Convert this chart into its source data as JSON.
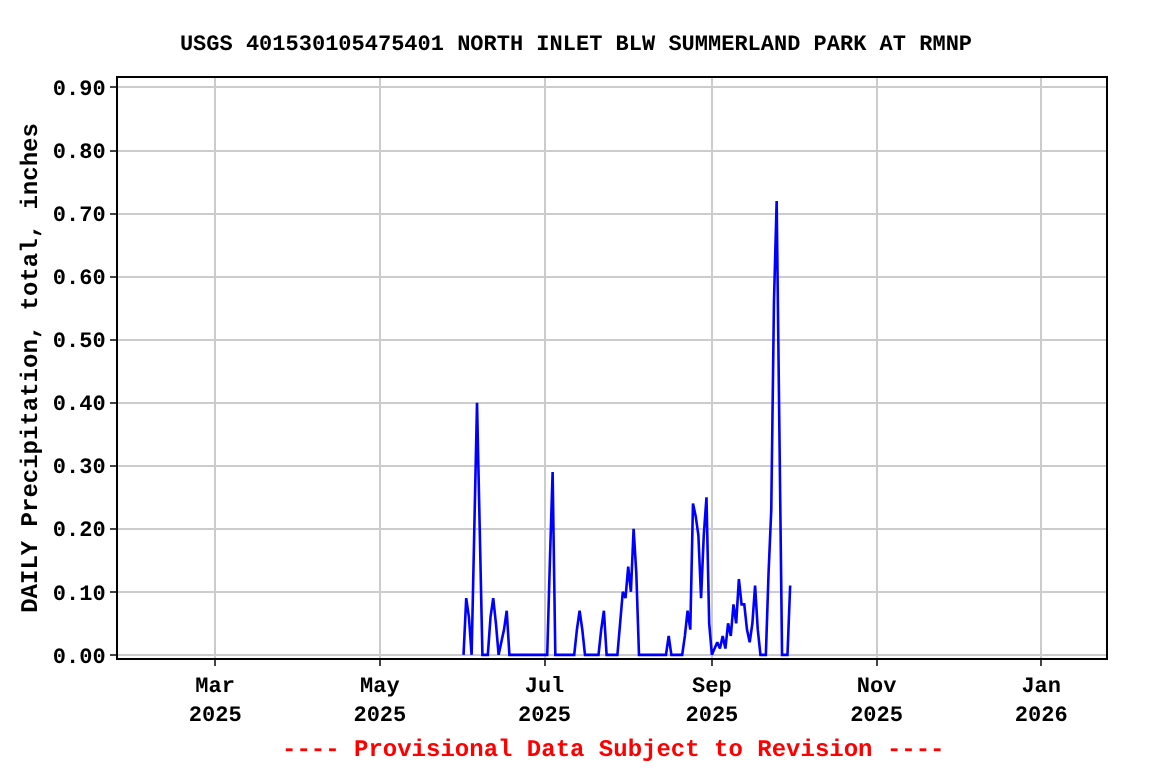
{
  "chart_data": {
    "type": "line",
    "title": "USGS 401530105475401 NORTH INLET BLW SUMMERLAND PARK AT RMNP",
    "ylabel": "DAILY Precipitation, total, inches",
    "annotations": [
      "---- Provisional Data Subject to Revision ----"
    ],
    "xlim": [
      "2025-01-24",
      "2026-01-25"
    ],
    "xticks": [
      {
        "value": "2025-03-01",
        "label": "Mar\n2025"
      },
      {
        "value": "2025-05-01",
        "label": "May\n2025"
      },
      {
        "value": "2025-07-01",
        "label": "Jul\n2025"
      },
      {
        "value": "2025-09-01",
        "label": "Sep\n2025"
      },
      {
        "value": "2025-11-01",
        "label": "Nov\n2025"
      },
      {
        "value": "2026-01-01",
        "label": "Jan\n2026"
      }
    ],
    "ylim": [
      -0.005,
      0.915
    ],
    "yticks": [
      {
        "value": 0,
        "label": "0.00"
      },
      {
        "value": 0.1,
        "label": "0.10"
      },
      {
        "value": 0.2,
        "label": "0.20"
      },
      {
        "value": 0.3,
        "label": "0.30"
      },
      {
        "value": 0.4,
        "label": "0.40"
      },
      {
        "value": 0.5,
        "label": "0.50"
      },
      {
        "value": 0.6,
        "label": "0.60"
      },
      {
        "value": 0.7,
        "label": "0.70"
      },
      {
        "value": 0.8,
        "label": "0.80"
      },
      {
        "value": 0.9,
        "label": "0.90"
      }
    ],
    "grid": true,
    "marker": "none",
    "line_style": "solid",
    "x": [
      "2025-06-01",
      "2025-06-02",
      "2025-06-03",
      "2025-06-04",
      "2025-06-05",
      "2025-06-06",
      "2025-06-07",
      "2025-06-08",
      "2025-06-10",
      "2025-06-11",
      "2025-06-12",
      "2025-06-13",
      "2025-06-14",
      "2025-06-16",
      "2025-06-17",
      "2025-06-18",
      "2025-07-02",
      "2025-07-03",
      "2025-07-04",
      "2025-07-05",
      "2025-07-12",
      "2025-07-13",
      "2025-07-14",
      "2025-07-15",
      "2025-07-16",
      "2025-07-21",
      "2025-07-22",
      "2025-07-23",
      "2025-07-24",
      "2025-07-28",
      "2025-07-29",
      "2025-07-30",
      "2025-07-31",
      "2025-08-01",
      "2025-08-02",
      "2025-08-03",
      "2025-08-04",
      "2025-08-05",
      "2025-08-15",
      "2025-08-16",
      "2025-08-17",
      "2025-08-21",
      "2025-08-22",
      "2025-08-23",
      "2025-08-24",
      "2025-08-25",
      "2025-08-26",
      "2025-08-27",
      "2025-08-28",
      "2025-08-29",
      "2025-08-30",
      "2025-08-31",
      "2025-09-01",
      "2025-09-03",
      "2025-09-04",
      "2025-09-05",
      "2025-09-06",
      "2025-09-07",
      "2025-09-08",
      "2025-09-09",
      "2025-09-10",
      "2025-09-11",
      "2025-09-12",
      "2025-09-13",
      "2025-09-14",
      "2025-09-15",
      "2025-09-16",
      "2025-09-17",
      "2025-09-18",
      "2025-09-19",
      "2025-09-21",
      "2025-09-22",
      "2025-09-23",
      "2025-09-24",
      "2025-09-25",
      "2025-09-26",
      "2025-09-27",
      "2025-09-29",
      "2025-09-30"
    ],
    "series": [
      {
        "color": "#0000ff",
        "values": [
          0,
          0.09,
          0.06,
          0,
          0.2,
          0.4,
          0.2,
          0,
          0,
          0.06,
          0.09,
          0.05,
          0,
          0.04,
          0.07,
          0,
          0,
          0.15,
          0.29,
          0,
          0,
          0.04,
          0.07,
          0.04,
          0,
          0,
          0.04,
          0.07,
          0,
          0,
          0.05,
          0.1,
          0.09,
          0.14,
          0.1,
          0.2,
          0.13,
          0,
          0,
          0.03,
          0,
          0,
          0.03,
          0.07,
          0.04,
          0.24,
          0.22,
          0.19,
          0.09,
          0.19,
          0.25,
          0.05,
          0,
          0.02,
          0.01,
          0.03,
          0.01,
          0.05,
          0.03,
          0.08,
          0.05,
          0.12,
          0.08,
          0.08,
          0.04,
          0.02,
          0.05,
          0.11,
          0.04,
          0,
          0,
          0.13,
          0.23,
          0.56,
          0.72,
          0.36,
          0,
          0,
          0.11
        ]
      }
    ]
  }
}
